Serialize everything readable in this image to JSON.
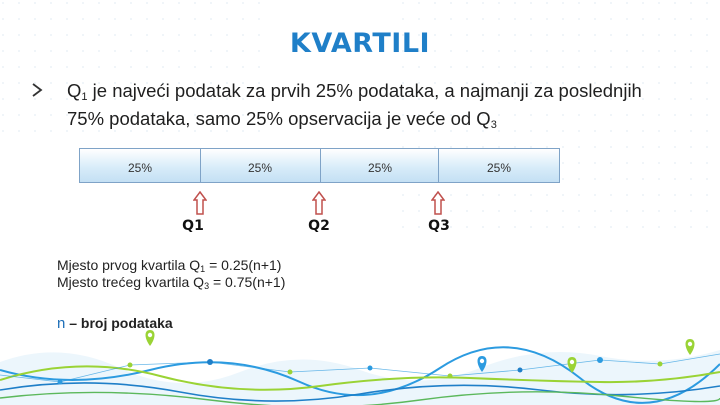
{
  "title": "KVARTILI",
  "bullet": {
    "icon": "chevron-arrow-icon",
    "part1": "Q",
    "sub1": "1",
    "part2": " je najveći podatak za prvih 25% podataka, a najmanji za poslednjih 75% podataka, samo 25% opservacija je veće od Q",
    "sub2": "3"
  },
  "segments": [
    "25%",
    "25%",
    "25%",
    "25%"
  ],
  "quartiles": [
    "Q1",
    "Q2",
    "Q3"
  ],
  "formulas": [
    {
      "pre": "Mjesto prvog kvartila Q",
      "sub": "1",
      "post": " = 0.25(n+1)"
    },
    {
      "pre": "Mjesto trećeg kvartila Q",
      "sub": "3",
      "post": " = 0.75(n+1)"
    }
  ],
  "legend": {
    "symbol": "n",
    "text": " – broj podataka"
  },
  "colors": {
    "title": "#1f7fc8",
    "arrow": "#c0504d",
    "wave_blue": "#2c9be0",
    "wave_green": "#9ad335"
  }
}
